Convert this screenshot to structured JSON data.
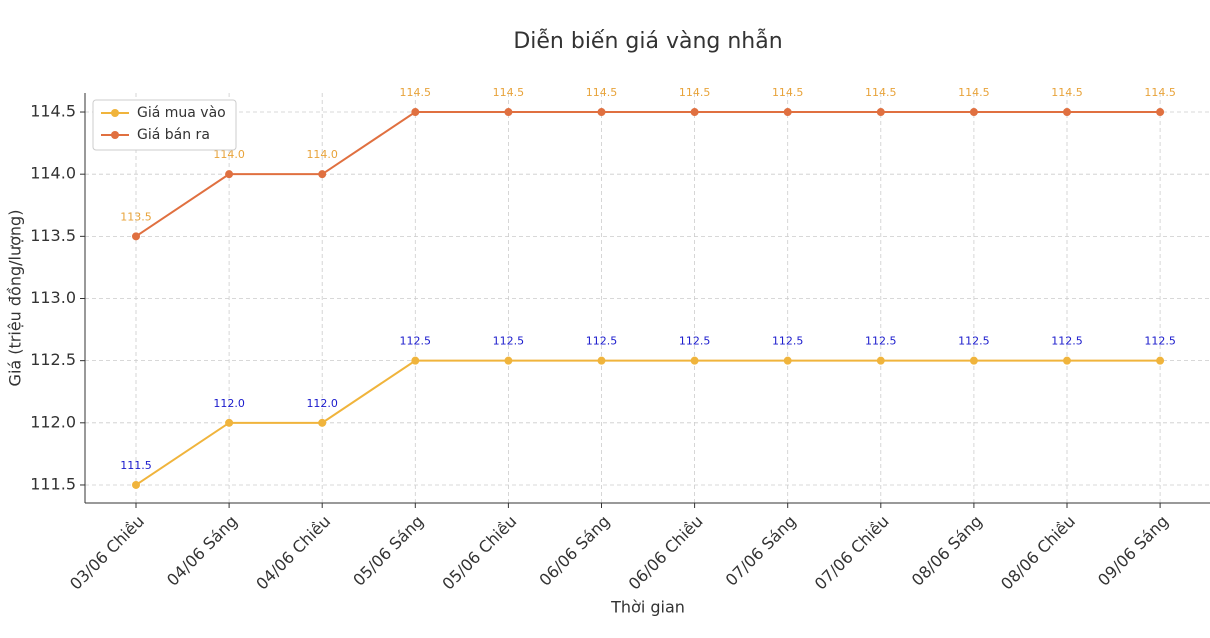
{
  "chart_data": {
    "type": "line",
    "title": "Diễn biến giá vàng nhẫn",
    "x_label": "Thời gian",
    "y_label": "Giá (triệu đồng/lượng)",
    "categories": [
      "03/06 Chiều",
      "04/06 Sáng",
      "04/06 Chiều",
      "05/06 Sáng",
      "05/06 Chiều",
      "06/06 Sáng",
      "06/06 Chiều",
      "07/06 Sáng",
      "07/06 Chiều",
      "08/06 Sáng",
      "08/06 Chiều",
      "09/06 Sáng"
    ],
    "series": [
      {
        "name": "Giá mua vào",
        "color": "#f0b43c",
        "label_color": "#1a1acc",
        "values": [
          111.5,
          112,
          112,
          112.5,
          112.5,
          112.5,
          112.5,
          112.5,
          112.5,
          112.5,
          112.5,
          112.5
        ],
        "value_labels": [
          "111.5",
          "112.0",
          "112.0",
          "112.5",
          "112.5",
          "112.5",
          "112.5",
          "112.5",
          "112.5",
          "112.5",
          "112.5",
          "112.5"
        ]
      },
      {
        "name": "Giá bán ra",
        "color": "#e07040",
        "label_color": "#e8a33a",
        "values": [
          113.5,
          114,
          114,
          114.5,
          114.5,
          114.5,
          114.5,
          114.5,
          114.5,
          114.5,
          114.5,
          114.5
        ],
        "value_labels": [
          "113.5",
          "114.0",
          "114.0",
          "114.5",
          "114.5",
          "114.5",
          "114.5",
          "114.5",
          "114.5",
          "114.5",
          "114.5",
          "114.5"
        ]
      }
    ],
    "ylim": [
      111.355,
      114.653
    ],
    "yticks": [
      111.5,
      {
        "value": 112,
        "label": "112.0"
      },
      112.5,
      {
        "value": 113,
        "label": "113.0"
      },
      113.5,
      {
        "value": 114,
        "label": "114.0"
      },
      114.5
    ],
    "grid": true,
    "legend": "upper left"
  }
}
